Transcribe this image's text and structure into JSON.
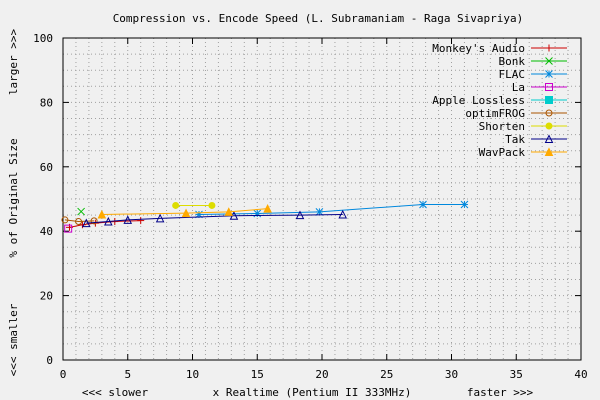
{
  "chart_data": {
    "type": "line",
    "title": "Compression vs. Encode Speed (L. Subramaniam - Raga Sivapriya)",
    "xlabel": "x Realtime (Pentium II 333MHz)",
    "xlabel_left": "<<< slower",
    "xlabel_right": "faster >>>",
    "ylabel": "% of Original Size",
    "ylabel_top": "larger >>>",
    "ylabel_bottom": "<<< smaller",
    "xlim": [
      0,
      40
    ],
    "ylim": [
      0,
      100
    ],
    "xticks": [
      "0",
      "5",
      "10",
      "15",
      "20",
      "25",
      "30",
      "35",
      "40"
    ],
    "yticks": [
      "0",
      "20",
      "40",
      "60",
      "80",
      "100"
    ],
    "grid": true,
    "legend_position": "top-right",
    "series": [
      {
        "name": "Monkey's Audio",
        "color": "#cc0000",
        "marker": "plus",
        "x": [
          0.5,
          1.5,
          2.5,
          4.0,
          6.0
        ],
        "y": [
          41.2,
          42.0,
          42.5,
          43.0,
          43.3
        ]
      },
      {
        "name": "Bonk",
        "color": "#00bb00",
        "marker": "cross",
        "x": [
          1.4
        ],
        "y": [
          46.1
        ]
      },
      {
        "name": "FLAC",
        "color": "#0088dd",
        "marker": "star",
        "x": [
          10.5,
          15.0,
          19.8,
          27.8,
          31.0
        ],
        "y": [
          45.2,
          45.5,
          46.0,
          48.3,
          48.3
        ]
      },
      {
        "name": "La",
        "color": "#cc00cc",
        "marker": "square",
        "x": [
          0.4
        ],
        "y": [
          40.8
        ]
      },
      {
        "name": "Apple Lossless",
        "color": "#00cccc",
        "marker": "filled-square",
        "x": [],
        "y": []
      },
      {
        "name": "optimFROG",
        "color": "#aa5500",
        "marker": "circle",
        "x": [
          0.15,
          1.2,
          2.4
        ],
        "y": [
          43.5,
          43.0,
          43.2
        ]
      },
      {
        "name": "Shorten",
        "color": "#dddd00",
        "marker": "filled-circle",
        "x": [
          8.7,
          11.5
        ],
        "y": [
          48.0,
          48.0
        ]
      },
      {
        "name": "Tak",
        "color": "#000088",
        "marker": "triangle",
        "x": [
          1.8,
          3.5,
          5.0,
          7.5,
          13.2,
          18.3,
          21.6
        ],
        "y": [
          42.5,
          43.0,
          43.5,
          44.0,
          44.8,
          45.0,
          45.2
        ]
      },
      {
        "name": "WavPack",
        "color": "#ffaa00",
        "marker": "filled-triangle",
        "x": [
          3.0,
          9.5,
          12.8,
          15.8
        ],
        "y": [
          45.2,
          45.6,
          46.0,
          47.0
        ]
      }
    ]
  }
}
